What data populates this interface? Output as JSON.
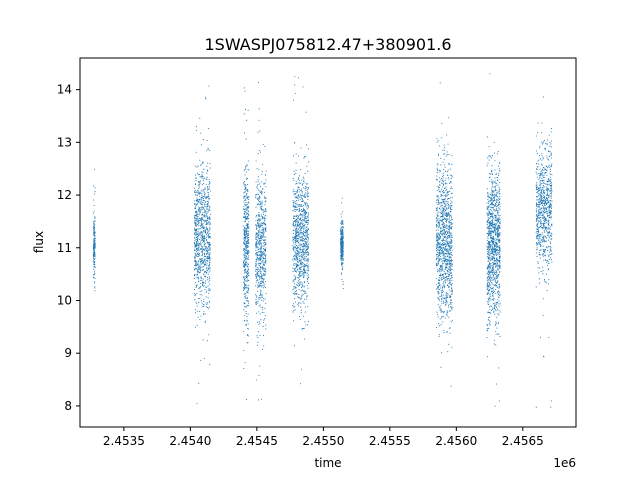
{
  "chart_data": {
    "type": "scatter",
    "title": "1SWASPJ075812.47+380901.6",
    "xlabel": "time",
    "ylabel": "flux",
    "x_offset_label": "1e6",
    "xlim": [
      2453170,
      2456900
    ],
    "ylim": [
      7.6,
      14.6
    ],
    "grid": false,
    "point_color": "#1f77b4",
    "xticks": [
      {
        "value": 2453500,
        "label": "2.4535"
      },
      {
        "value": 2454000,
        "label": "2.4540"
      },
      {
        "value": 2454500,
        "label": "2.4545"
      },
      {
        "value": 2455000,
        "label": "2.4550"
      },
      {
        "value": 2455500,
        "label": "2.4555"
      },
      {
        "value": 2456000,
        "label": "2.4560"
      },
      {
        "value": 2456500,
        "label": "2.4565"
      }
    ],
    "yticks": [
      {
        "value": 8,
        "label": "8"
      },
      {
        "value": 9,
        "label": "9"
      },
      {
        "value": 10,
        "label": "10"
      },
      {
        "value": 11,
        "label": "11"
      },
      {
        "value": 12,
        "label": "12"
      },
      {
        "value": 13,
        "label": "13"
      },
      {
        "value": 14,
        "label": "14"
      }
    ],
    "segments": [
      {
        "t_start": 2453270,
        "t_end": 2453285,
        "median": 11.05,
        "low": 9.7,
        "high": 12.5,
        "density": 1
      },
      {
        "t_start": 2454030,
        "t_end": 2454150,
        "median": 11.2,
        "low": 8.0,
        "high": 14.3,
        "density": 6
      },
      {
        "t_start": 2454400,
        "t_end": 2454440,
        "median": 11.0,
        "low": 7.9,
        "high": 14.3,
        "density": 3
      },
      {
        "t_start": 2454490,
        "t_end": 2454570,
        "median": 10.95,
        "low": 7.9,
        "high": 14.3,
        "density": 4
      },
      {
        "t_start": 2454770,
        "t_end": 2454890,
        "median": 11.15,
        "low": 8.3,
        "high": 14.35,
        "density": 6
      },
      {
        "t_start": 2455130,
        "t_end": 2455150,
        "median": 11.05,
        "low": 10.2,
        "high": 12.05,
        "density": 2
      },
      {
        "t_start": 2455850,
        "t_end": 2455970,
        "median": 11.1,
        "low": 7.9,
        "high": 14.3,
        "density": 7
      },
      {
        "t_start": 2456230,
        "t_end": 2456330,
        "median": 11.05,
        "low": 7.9,
        "high": 14.35,
        "density": 7
      },
      {
        "t_start": 2456600,
        "t_end": 2456720,
        "median": 11.75,
        "low": 7.9,
        "high": 14.35,
        "density": 5
      }
    ]
  }
}
